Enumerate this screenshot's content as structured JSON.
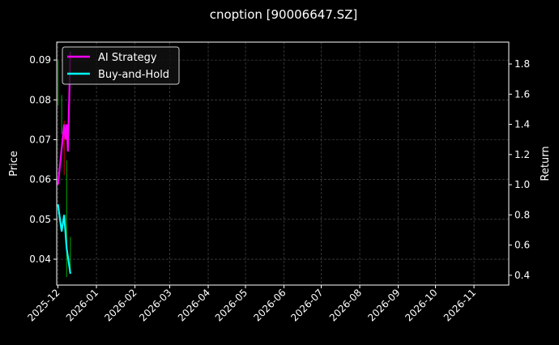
{
  "chart_data": {
    "type": "line",
    "title": "cnoption [90006647.SZ]",
    "ylabel_left": "Price",
    "ylabel_right": "Return",
    "xlim": [
      "2025-11-30",
      "2026-11-29"
    ],
    "ylim_left": [
      0.0335,
      0.0945
    ],
    "ylim_right": [
      0.335,
      1.945
    ],
    "x_ticks": [
      "2025-12",
      "2026-01",
      "2026-02",
      "2026-03",
      "2026-04",
      "2026-05",
      "2026-06",
      "2026-07",
      "2026-08",
      "2026-09",
      "2026-10",
      "2026-11"
    ],
    "y_ticks_left": [
      0.04,
      0.05,
      0.06,
      0.07,
      0.08,
      0.09
    ],
    "y_ticks_right": [
      0.4,
      0.6,
      0.8,
      1.0,
      1.2,
      1.4,
      1.6,
      1.8
    ],
    "grid": true,
    "legend_placement": "top-left",
    "price_bars": [
      {
        "date": "2025-12-01",
        "high": 0.0898,
        "low": 0.0785,
        "color": "#00aa00"
      },
      {
        "date": "2025-12-04",
        "high": 0.0812,
        "low": 0.0714,
        "color": "#00aa00"
      },
      {
        "date": "2025-12-06",
        "high": 0.0748,
        "low": 0.0611,
        "color": "#dd0000"
      },
      {
        "date": "2025-12-08",
        "high": 0.0648,
        "low": 0.0355,
        "color": "#00aa00"
      },
      {
        "date": "2025-12-11",
        "high": 0.0456,
        "low": 0.0365,
        "color": "#00aa00"
      }
    ],
    "series": [
      {
        "name": "AI Strategy",
        "color": "#ff00ff",
        "axis": "right",
        "x": [
          "2025-12-01",
          "2025-12-06",
          "2025-12-07",
          "2025-12-08",
          "2025-12-09",
          "2025-12-11"
        ],
        "y": [
          1.0,
          1.4,
          1.3,
          1.4,
          1.22,
          1.88
        ]
      },
      {
        "name": "Buy-and-Hold",
        "color": "#00ffff",
        "axis": "right",
        "x": [
          "2025-12-01",
          "2025-12-04",
          "2025-12-06",
          "2025-12-08",
          "2025-12-11"
        ],
        "y": [
          0.87,
          0.69,
          0.8,
          0.58,
          0.41
        ]
      }
    ]
  }
}
